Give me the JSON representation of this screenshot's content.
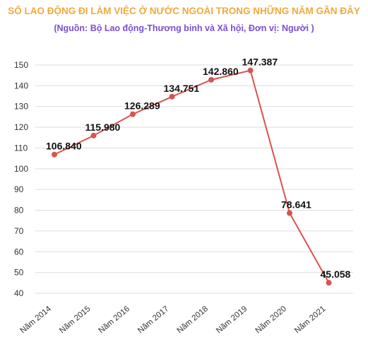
{
  "header": {
    "title": "SỐ LAO ĐỘNG ĐI LÀM VIỆC Ở NƯỚC NGOÀI TRONG NHỮNG NĂM GẦN ĐÂY",
    "subtitle": "(Nguồn: Bộ Lao động-Thương binh và Xã hội, Đơn vị: Người )"
  },
  "colors": {
    "title": "#f2a93b",
    "subtitle": "#7a4fd4",
    "line": "#d9534f",
    "marker": "#d9534f",
    "grid": "#dddddd"
  },
  "chart_data": {
    "type": "line",
    "title": "SỐ LAO ĐỘNG ĐI LÀM VIỆC Ở NƯỚC NGOÀI TRONG NHỮNG NĂM GẦN ĐÂY",
    "subtitle": "(Nguồn: Bộ Lao động-Thương binh và Xã hội, Đơn vị: Người )",
    "categories": [
      "Năm 2014",
      "Năm 2015",
      "Năm 2016",
      "Năm 2017",
      "Năm 2018",
      "Năm 2019",
      "Năm 2020",
      "Năm 2021"
    ],
    "values": [
      106.84,
      115.98,
      126.289,
      134.751,
      142.86,
      147.387,
      78.641,
      45.058
    ],
    "data_labels": [
      "106.840",
      "115.980",
      "126.289",
      "134.751",
      "142.860",
      "147.387",
      "78.641",
      "45.058"
    ],
    "yticks": [
      40,
      50,
      60,
      70,
      80,
      90,
      100,
      110,
      120,
      130,
      140,
      150
    ],
    "ylim": [
      40,
      150
    ],
    "grid": true,
    "legend": "none"
  }
}
